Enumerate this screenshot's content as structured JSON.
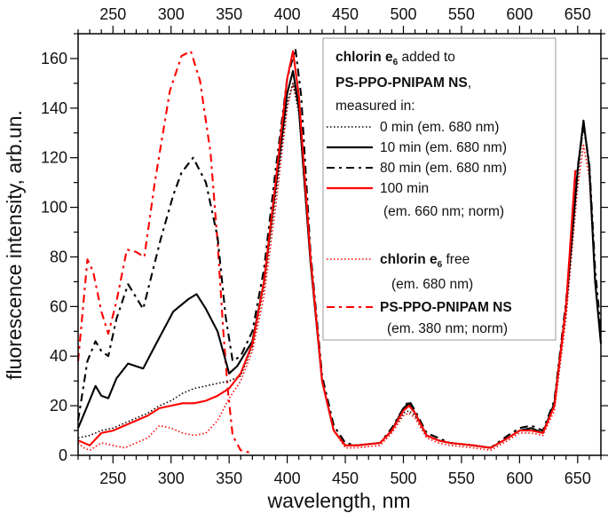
{
  "chart_data": {
    "type": "line",
    "xlabel": "wavelength, nm",
    "ylabel": "fluorescence intensity, arb.un.",
    "xlim": [
      220,
      670
    ],
    "ylim": [
      0,
      170
    ],
    "xticks": [
      250,
      300,
      350,
      400,
      450,
      500,
      550,
      600,
      650
    ],
    "yticks": [
      0,
      20,
      40,
      60,
      80,
      100,
      120,
      140,
      160
    ],
    "grid": false,
    "legend_position": "top-right",
    "legend": {
      "title_a": "chlorin e",
      "title_sub": "6",
      "title_b": " added to",
      "title_line2": "PS-PPO-PNIPAM NS",
      "title_line2_suffix": ",",
      "title_line3": "measured in:",
      "entry_0min": "0 min (em. 680 nm)",
      "entry_10min": "10 min (em. 680 nm)",
      "entry_80min": "80 min (em. 680 nm)",
      "entry_100min": "100 min",
      "entry_100min_2": "(em. 660 nm; norm)",
      "entry_free_a": "chlorin e",
      "entry_free_sub": "6",
      "entry_free_b": " free",
      "entry_free_2": "(em. 680 nm)",
      "entry_ps": "PS-PPO-PNIPAM NS",
      "entry_ps_2": "(em. 380 nm; norm)"
    },
    "series": [
      {
        "id": "0min",
        "color": "#000000",
        "style": "dotted",
        "x": [
          220,
          230,
          240,
          250,
          260,
          270,
          280,
          290,
          300,
          310,
          320,
          330,
          340,
          350,
          360,
          370,
          380,
          390,
          400,
          405,
          410,
          420,
          430,
          440,
          450,
          460,
          480,
          490,
          500,
          505,
          510,
          520,
          530,
          540,
          560,
          575,
          590,
          600,
          610,
          620,
          630,
          640,
          650,
          655,
          660,
          665,
          670
        ],
        "y": [
          7,
          8,
          10,
          11,
          13,
          15,
          17,
          20,
          22,
          25,
          27,
          28,
          29,
          30,
          32,
          44,
          68,
          105,
          142,
          150,
          138,
          78,
          30,
          10,
          4,
          4,
          5,
          10,
          17,
          18,
          16,
          8,
          6,
          5,
          4,
          3,
          7,
          10,
          11,
          9,
          20,
          58,
          112,
          133,
          118,
          72,
          45
        ]
      },
      {
        "id": "10min",
        "color": "#000000",
        "style": "solid",
        "x": [
          220,
          228,
          235,
          240,
          246,
          253,
          263,
          276,
          286,
          302,
          315,
          322,
          330,
          340,
          350,
          357,
          370,
          380,
          390,
          400,
          405,
          410,
          420,
          430,
          440,
          450,
          460,
          480,
          490,
          500,
          505,
          510,
          520,
          530,
          540,
          560,
          575,
          590,
          600,
          610,
          620,
          630,
          640,
          650,
          655,
          660,
          665,
          670
        ],
        "y": [
          11,
          20,
          28,
          24,
          23,
          31,
          37,
          35,
          44,
          58,
          63,
          65,
          59,
          50,
          33,
          36,
          46,
          70,
          108,
          146,
          155,
          140,
          78,
          30,
          10,
          4,
          4,
          5,
          10,
          19,
          21,
          17,
          8,
          6,
          5,
          4,
          3,
          7,
          10,
          11,
          9,
          21,
          60,
          115,
          135,
          116,
          70,
          45
        ]
      },
      {
        "id": "80min",
        "color": "#000000",
        "style": "dashdot",
        "x": [
          220,
          228,
          235,
          240,
          246,
          253,
          263,
          276,
          291,
          302,
          309,
          319,
          330,
          340,
          347,
          353,
          360,
          370,
          380,
          390,
          400,
          407,
          412,
          420,
          430,
          440,
          450,
          460,
          480,
          490,
          500,
          505,
          510,
          520,
          530,
          540,
          560,
          575,
          590,
          600,
          610,
          620,
          630,
          640,
          650,
          655,
          660,
          665,
          670
        ],
        "y": [
          14,
          38,
          46,
          42,
          40,
          55,
          69,
          59,
          87,
          105,
          114,
          120,
          110,
          88,
          56,
          38,
          40,
          50,
          75,
          115,
          152,
          164,
          145,
          82,
          32,
          12,
          5,
          4,
          5,
          11,
          19,
          22,
          18,
          9,
          7,
          5,
          4,
          3,
          8,
          11,
          12,
          10,
          22,
          62,
          116,
          133,
          118,
          75,
          50
        ]
      },
      {
        "id": "100min",
        "color": "#ff0000",
        "style": "solid",
        "x": [
          220,
          230,
          240,
          250,
          260,
          270,
          280,
          290,
          300,
          310,
          320,
          330,
          340,
          350,
          360,
          370,
          380,
          390,
          400,
          405,
          410,
          420,
          430,
          440,
          450,
          460,
          480,
          490,
          500,
          505,
          510,
          520,
          530,
          540,
          560,
          575,
          590,
          600,
          610,
          620,
          630,
          640,
          648
        ],
        "y": [
          6,
          4,
          9,
          10,
          12,
          14,
          16,
          19,
          20,
          21,
          21,
          22,
          24,
          27,
          33,
          45,
          70,
          110,
          152,
          163,
          145,
          80,
          30,
          10,
          4,
          4,
          5,
          10,
          18,
          20,
          17,
          8,
          6,
          5,
          4,
          3,
          7,
          10,
          10,
          9,
          20,
          60,
          115
        ]
      },
      {
        "id": "free",
        "color": "#ff0000",
        "style": "dotted",
        "x": [
          220,
          225,
          230,
          240,
          250,
          260,
          270,
          280,
          290,
          300,
          310,
          320,
          330,
          340,
          350,
          360,
          370,
          380,
          390,
          400,
          405,
          410,
          420,
          430,
          440,
          450,
          460,
          480,
          490,
          500,
          505,
          510,
          520,
          530,
          540,
          560,
          575,
          590,
          600,
          610,
          620,
          630,
          640,
          650,
          655,
          660,
          665,
          670
        ],
        "y": [
          5,
          3,
          2,
          5,
          4,
          3,
          5,
          7,
          12,
          11,
          9,
          8,
          9,
          14,
          23,
          30,
          42,
          64,
          100,
          140,
          150,
          140,
          80,
          30,
          10,
          3,
          3,
          4,
          9,
          16,
          17,
          15,
          7,
          5,
          4,
          3,
          2,
          6,
          9,
          9,
          8,
          18,
          55,
          108,
          125,
          112,
          70,
          45
        ]
      },
      {
        "id": "ps",
        "color": "#ff0000",
        "style": "dashdot",
        "x": [
          220,
          228,
          233,
          240,
          246,
          253,
          262,
          270,
          277,
          286,
          299,
          309,
          317,
          325,
          334,
          340,
          345,
          349,
          353,
          360,
          369
        ],
        "y": [
          38,
          79,
          74,
          58,
          49,
          62,
          83,
          82,
          80,
          110,
          147,
          161,
          163,
          151,
          122,
          86,
          50,
          26,
          8,
          2,
          1
        ]
      }
    ]
  }
}
